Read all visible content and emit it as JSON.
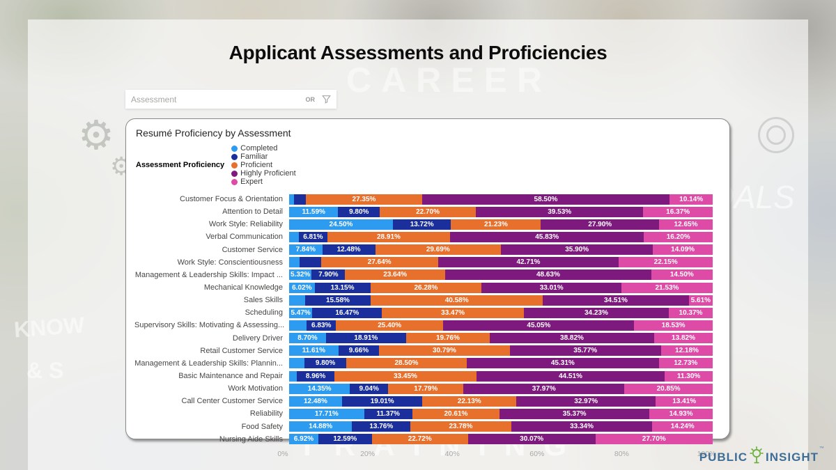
{
  "page": {
    "title": "Applicant Assessments and Proficiencies"
  },
  "filter": {
    "placeholder": "Assessment",
    "operator": "OR",
    "icon": "funnel-icon"
  },
  "panel": {
    "title": "Resumé Proficiency by Assessment"
  },
  "legend": {
    "title": "Assessment Proficiency",
    "items": [
      {
        "label": "Completed",
        "color": "#2D9BF0"
      },
      {
        "label": "Familiar",
        "color": "#1A2F9B"
      },
      {
        "label": "Proficient",
        "color": "#E8702D"
      },
      {
        "label": "Highly Proficient",
        "color": "#7E1A7E"
      },
      {
        "label": "Expert",
        "color": "#DD4BA7"
      }
    ]
  },
  "chart_data": {
    "type": "bar",
    "stacked": true,
    "orientation": "horizontal",
    "title": "Resumé Proficiency by Assessment",
    "series_names": [
      "Completed",
      "Familiar",
      "Proficient",
      "Highly Proficient",
      "Expert"
    ],
    "series_colors": [
      "#2D9BF0",
      "#1A2F9B",
      "#E8702D",
      "#7E1A7E",
      "#DD4BA7"
    ],
    "xlim": [
      0,
      100
    ],
    "x_ticks": [
      "0%",
      "20%",
      "40%",
      "60%",
      "80%",
      "100%"
    ],
    "rows": [
      {
        "category": "Customer Focus & Orientation",
        "values": [
          1.21,
          2.8,
          27.35,
          58.5,
          10.14
        ],
        "labels": [
          "",
          "",
          "27.35%",
          "58.50%",
          "10.14%"
        ]
      },
      {
        "category": "Attention to Detail",
        "values": [
          11.59,
          9.8,
          22.7,
          39.53,
          16.37
        ],
        "labels": [
          "11.59%",
          "9.80%",
          "22.70%",
          "39.53%",
          "16.37%"
        ]
      },
      {
        "category": "Work Style: Reliability",
        "values": [
          24.5,
          13.72,
          21.23,
          27.9,
          12.65
        ],
        "labels": [
          "24.50%",
          "13.72%",
          "21.23%",
          "27.90%",
          "12.65%"
        ]
      },
      {
        "category": "Verbal Communication",
        "values": [
          2.25,
          6.81,
          28.91,
          45.83,
          16.2
        ],
        "labels": [
          "",
          "6.81%",
          "28.91%",
          "45.83%",
          "16.20%"
        ]
      },
      {
        "category": "Customer Service",
        "values": [
          7.84,
          12.48,
          29.69,
          35.9,
          14.09
        ],
        "labels": [
          "7.84%",
          "12.48%",
          "29.69%",
          "35.90%",
          "14.09%"
        ]
      },
      {
        "category": "Work Style: Conscientiousness",
        "values": [
          2.5,
          5.0,
          27.64,
          42.71,
          22.15
        ],
        "labels": [
          "",
          "",
          "27.64%",
          "42.71%",
          "22.15%"
        ]
      },
      {
        "category": "Management & Leadership Skills: Impact ...",
        "values": [
          5.32,
          7.9,
          23.64,
          48.63,
          14.5
        ],
        "labels": [
          "5.32%",
          "7.90%",
          "23.64%",
          "48.63%",
          "14.50%"
        ]
      },
      {
        "category": "Mechanical Knowledge",
        "values": [
          6.02,
          13.15,
          26.28,
          33.01,
          21.53
        ],
        "labels": [
          "6.02%",
          "13.15%",
          "26.28%",
          "33.01%",
          "21.53%"
        ]
      },
      {
        "category": "Sales Skills",
        "values": [
          3.72,
          15.58,
          40.58,
          34.51,
          5.61
        ],
        "labels": [
          "",
          "15.58%",
          "40.58%",
          "34.51%",
          "5.61%"
        ]
      },
      {
        "category": "Scheduling",
        "values": [
          5.47,
          16.47,
          33.47,
          34.23,
          10.37
        ],
        "labels": [
          "5.47%",
          "16.47%",
          "33.47%",
          "34.23%",
          "10.37%"
        ]
      },
      {
        "category": "Supervisory Skills: Motivating & Assessing...",
        "values": [
          4.19,
          6.83,
          25.4,
          45.05,
          18.53
        ],
        "labels": [
          "",
          "6.83%",
          "25.40%",
          "45.05%",
          "18.53%"
        ]
      },
      {
        "category": "Delivery Driver",
        "values": [
          8.7,
          18.91,
          19.76,
          38.82,
          13.82
        ],
        "labels": [
          "8.70%",
          "18.91%",
          "19.76%",
          "38.82%",
          "13.82%"
        ]
      },
      {
        "category": "Retail Customer Service",
        "values": [
          11.61,
          9.66,
          30.79,
          35.77,
          12.18
        ],
        "labels": [
          "11.61%",
          "9.66%",
          "30.79%",
          "35.77%",
          "12.18%"
        ]
      },
      {
        "category": "Management & Leadership Skills: Plannin...",
        "values": [
          3.66,
          9.8,
          28.5,
          45.31,
          12.73
        ],
        "labels": [
          "",
          "9.80%",
          "28.50%",
          "45.31%",
          "12.73%"
        ]
      },
      {
        "category": "Basic Maintenance and Repair",
        "values": [
          1.78,
          8.96,
          33.45,
          44.51,
          11.3
        ],
        "labels": [
          "",
          "8.96%",
          "33.45%",
          "44.51%",
          "11.30%"
        ]
      },
      {
        "category": "Work Motivation",
        "values": [
          14.35,
          9.04,
          17.79,
          37.97,
          20.85
        ],
        "labels": [
          "14.35%",
          "9.04%",
          "17.79%",
          "37.97%",
          "20.85%"
        ]
      },
      {
        "category": "Call Center Customer Service",
        "values": [
          12.48,
          19.01,
          22.13,
          32.97,
          13.41
        ],
        "labels": [
          "12.48%",
          "19.01%",
          "22.13%",
          "32.97%",
          "13.41%"
        ]
      },
      {
        "category": "Reliability",
        "values": [
          17.71,
          11.37,
          20.61,
          35.37,
          14.93
        ],
        "labels": [
          "17.71%",
          "11.37%",
          "20.61%",
          "35.37%",
          "14.93%"
        ]
      },
      {
        "category": "Food Safety",
        "values": [
          14.88,
          13.76,
          23.78,
          33.34,
          14.24
        ],
        "labels": [
          "14.88%",
          "13.76%",
          "23.78%",
          "33.34%",
          "14.24%"
        ]
      },
      {
        "category": "Nursing Aide Skills",
        "values": [
          6.92,
          12.59,
          22.72,
          30.07,
          27.7
        ],
        "labels": [
          "6.92%",
          "12.59%",
          "22.72%",
          "30.07%",
          "27.70%"
        ]
      }
    ]
  },
  "watermarks": {
    "career": "CAREER",
    "goals": "OALS",
    "know": "KNOW",
    "amp": "& S",
    "training": "TRAINING",
    "letter_e": "E",
    "gear": "⚙"
  },
  "logo": {
    "left": "PUBLIC",
    "right": "INSIGHT",
    "tm": "™",
    "text_color": "#3e6e96",
    "icon_color": "#6CB33F"
  }
}
